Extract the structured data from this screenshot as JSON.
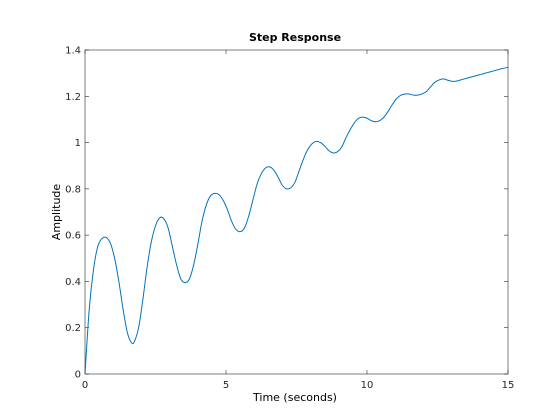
{
  "chart_data": {
    "type": "line",
    "title": "Step Response",
    "xlabel": "Time (seconds)",
    "ylabel": "Amplitude",
    "xlim": [
      0,
      15
    ],
    "ylim": [
      0,
      1.4
    ],
    "xticks": [
      0,
      5,
      10,
      15
    ],
    "yticks": [
      0,
      0.2,
      0.4,
      0.6,
      0.8,
      1,
      1.2,
      1.4
    ],
    "xtick_labels": [
      "0",
      "5",
      "10",
      "15"
    ],
    "ytick_labels": [
      "0",
      "0.2",
      "0.4",
      "0.6",
      "0.8",
      "1",
      "1.2",
      "1.4"
    ],
    "grid": false,
    "series": [
      {
        "color": "#0072bd",
        "x": [
          0,
          0.15,
          0.3,
          0.45,
          0.6,
          0.75,
          0.9,
          1.05,
          1.2,
          1.35,
          1.5,
          1.65,
          1.75,
          1.9,
          2.05,
          2.2,
          2.35,
          2.5,
          2.65,
          2.8,
          2.95,
          3.1,
          3.25,
          3.4,
          3.55,
          3.7,
          3.85,
          4.0,
          4.15,
          4.3,
          4.45,
          4.6,
          4.75,
          4.9,
          5.05,
          5.2,
          5.35,
          5.5,
          5.65,
          5.8,
          5.95,
          6.1,
          6.25,
          6.4,
          6.55,
          6.7,
          6.85,
          7.0,
          7.15,
          7.3,
          7.45,
          7.6,
          7.75,
          7.9,
          8.05,
          8.2,
          8.35,
          8.5,
          8.65,
          8.8,
          8.95,
          9.1,
          9.25,
          9.4,
          9.55,
          9.7,
          9.85,
          10.0,
          10.15,
          10.3,
          10.45,
          10.6,
          10.75,
          10.9,
          11.05,
          11.2,
          11.35,
          11.5,
          11.65,
          11.8,
          11.95,
          12.1,
          12.25,
          12.4,
          12.55,
          12.7,
          12.85,
          13.0,
          13.15,
          13.3,
          13.45,
          13.6,
          13.75,
          13.9,
          14.05,
          14.2,
          14.35,
          14.5,
          14.65,
          14.8,
          15.0
        ],
        "y": [
          0,
          0.28,
          0.45,
          0.55,
          0.585,
          0.59,
          0.565,
          0.5,
          0.4,
          0.28,
          0.18,
          0.135,
          0.14,
          0.2,
          0.32,
          0.46,
          0.57,
          0.64,
          0.675,
          0.67,
          0.63,
          0.55,
          0.47,
          0.41,
          0.395,
          0.41,
          0.47,
          0.56,
          0.66,
          0.73,
          0.77,
          0.78,
          0.775,
          0.75,
          0.71,
          0.66,
          0.625,
          0.615,
          0.63,
          0.68,
          0.75,
          0.82,
          0.865,
          0.89,
          0.895,
          0.88,
          0.85,
          0.815,
          0.8,
          0.805,
          0.83,
          0.88,
          0.93,
          0.97,
          0.995,
          1.005,
          1.0,
          0.985,
          0.965,
          0.955,
          0.96,
          0.98,
          1.02,
          1.055,
          1.085,
          1.105,
          1.11,
          1.105,
          1.095,
          1.09,
          1.095,
          1.11,
          1.135,
          1.165,
          1.19,
          1.205,
          1.21,
          1.21,
          1.205,
          1.205,
          1.21,
          1.22,
          1.24,
          1.26,
          1.27,
          1.275,
          1.27,
          1.265,
          1.265,
          1.27,
          1.275,
          1.28,
          1.285,
          1.29,
          1.295,
          1.3,
          1.305,
          1.31,
          1.315,
          1.32,
          1.325
        ]
      }
    ]
  }
}
